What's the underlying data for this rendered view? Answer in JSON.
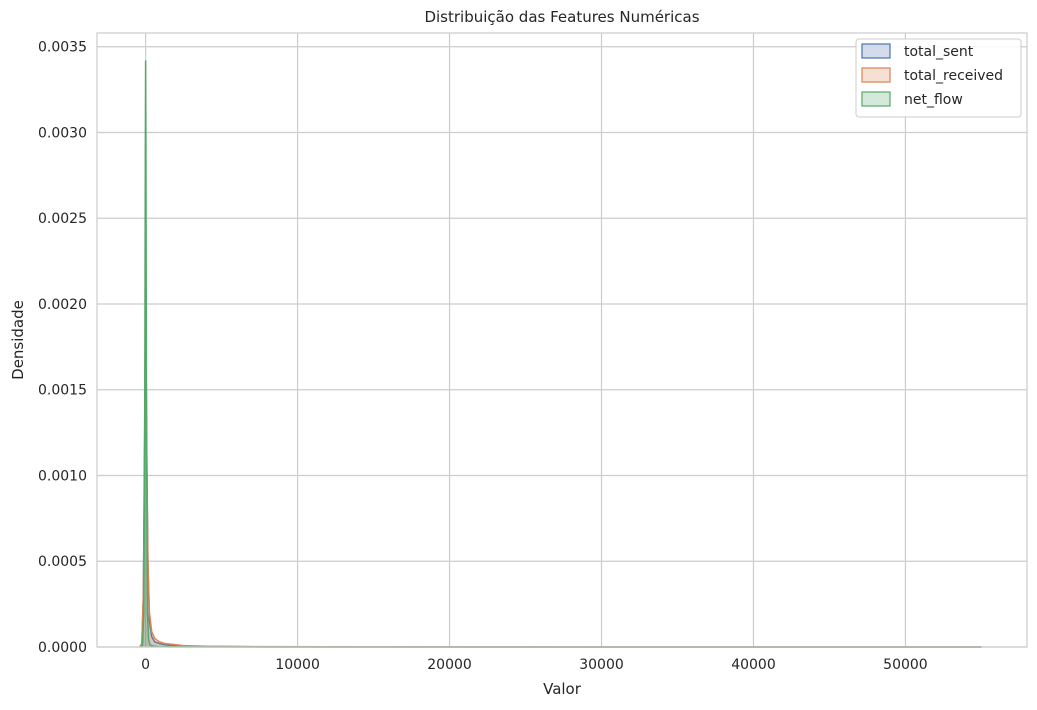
{
  "chart_data": {
    "type": "area",
    "title": "Distribuição das Features Numéricas",
    "xlabel": "Valor",
    "ylabel": "Densidade",
    "xlim": [
      -3200,
      58000
    ],
    "ylim": [
      0,
      0.00358
    ],
    "x_ticks": [
      0,
      10000,
      20000,
      30000,
      40000,
      50000
    ],
    "x_tick_labels": [
      "0",
      "10000",
      "20000",
      "30000",
      "40000",
      "50000"
    ],
    "y_ticks": [
      0,
      0.0005,
      0.001,
      0.0015,
      0.002,
      0.0025,
      0.003,
      0.0035
    ],
    "y_tick_labels": [
      "0.0000",
      "0.0005",
      "0.0010",
      "0.0015",
      "0.0020",
      "0.0025",
      "0.0030",
      "0.0035"
    ],
    "grid": true,
    "legend_position": "top-right",
    "series": [
      {
        "name": "total_sent",
        "color": "#4c72b0",
        "x": [
          -380,
          -250,
          -150,
          -80,
          -30,
          0,
          30,
          80,
          150,
          250,
          400,
          600,
          900,
          1300,
          1800,
          2500,
          4000,
          8000,
          15000,
          30000,
          55000
        ],
        "y": [
          0,
          2e-05,
          0.0003,
          0.0011,
          0.00175,
          0.00192,
          0.0017,
          0.0011,
          0.0005,
          0.00015,
          6e-05,
          3e-05,
          2e-05,
          1.2e-05,
          8e-06,
          5e-06,
          3e-06,
          1e-06,
          5e-07,
          2e-07,
          0
        ]
      },
      {
        "name": "total_received",
        "color": "#dd8452",
        "x": [
          -380,
          -250,
          -150,
          -80,
          -30,
          0,
          30,
          80,
          150,
          250,
          400,
          600,
          900,
          1300,
          1800,
          2500,
          4000,
          8000,
          15000,
          30000,
          55000
        ],
        "y": [
          0,
          2e-05,
          0.0003,
          0.0009,
          0.0015,
          0.0017,
          0.0015,
          0.001,
          0.0005,
          0.0002,
          9e-05,
          5e-05,
          3e-05,
          2e-05,
          1.5e-05,
          8e-06,
          4e-06,
          2e-06,
          1e-06,
          3e-07,
          0
        ]
      },
      {
        "name": "net_flow",
        "color": "#55a868",
        "x": [
          -300,
          -200,
          -120,
          -60,
          -20,
          0,
          20,
          60,
          120,
          200,
          300,
          500,
          800,
          1500,
          3000,
          10000,
          55000
        ],
        "y": [
          0,
          1e-05,
          0.0002,
          0.0012,
          0.0029,
          0.00342,
          0.0029,
          0.0012,
          0.0002,
          4e-05,
          1e-05,
          5e-06,
          3e-06,
          1e-06,
          5e-07,
          1e-07,
          0
        ]
      }
    ]
  }
}
